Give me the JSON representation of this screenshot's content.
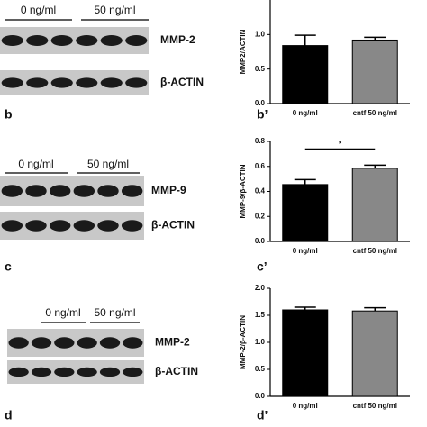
{
  "blots": [
    {
      "groups": [
        "0 ng/ml",
        "50 ng/ml"
      ],
      "bands": [
        "MMP-2",
        "β-ACTIN"
      ]
    },
    {
      "groups": [
        "0 ng/ml",
        "50 ng/ml"
      ],
      "bands": [
        "MMP-9",
        "β-ACTIN"
      ]
    },
    {
      "groups": [
        "0 ng/ml",
        "50 ng/ml"
      ],
      "bands": [
        "MMP-2",
        "β-ACTIN"
      ]
    }
  ],
  "panel_labels": [
    "b",
    "b’",
    "c",
    "c’",
    "d",
    "d’"
  ],
  "chart_data": [
    {
      "type": "bar",
      "y_label": "MMP2/ACTIN",
      "categories": [
        "0 ng/ml",
        "cntf 50 ng/ml"
      ],
      "values": [
        0.84,
        0.92
      ],
      "errors": [
        0.15,
        0.04
      ],
      "colors": [
        "#000000",
        "#888888"
      ],
      "ylim": [
        0,
        1.5
      ],
      "yticks": [
        {
          "value": 0,
          "label": "0.0"
        },
        0.5,
        {
          "value": 1,
          "label": "1.0"
        }
      ]
    },
    {
      "type": "bar",
      "y_label": "MMP-9/β-ACTIN",
      "categories": [
        "0 ng/ml",
        "cntf 50 ng/ml"
      ],
      "values": [
        0.455,
        0.585
      ],
      "errors": [
        0.04,
        0.025
      ],
      "colors": [
        "#000000",
        "#888888"
      ],
      "ylim": [
        0,
        0.8
      ],
      "yticks": [
        {
          "value": 0,
          "label": "0.0"
        },
        0.2,
        0.4,
        0.6,
        0.8
      ],
      "annotation": "*"
    },
    {
      "type": "bar",
      "y_label": "MMP-2/β-ACTIN",
      "categories": [
        "0 ng/ml",
        "cntf 50 ng/ml"
      ],
      "values": [
        1.6,
        1.58
      ],
      "errors": [
        0.05,
        0.06
      ],
      "colors": [
        "#000000",
        "#888888"
      ],
      "ylim": [
        0,
        2
      ],
      "yticks": [
        {
          "value": 0,
          "label": "0.0"
        },
        0.5,
        {
          "value": 1,
          "label": "1.0"
        },
        1.5,
        {
          "value": 2,
          "label": "2.0"
        }
      ]
    }
  ]
}
